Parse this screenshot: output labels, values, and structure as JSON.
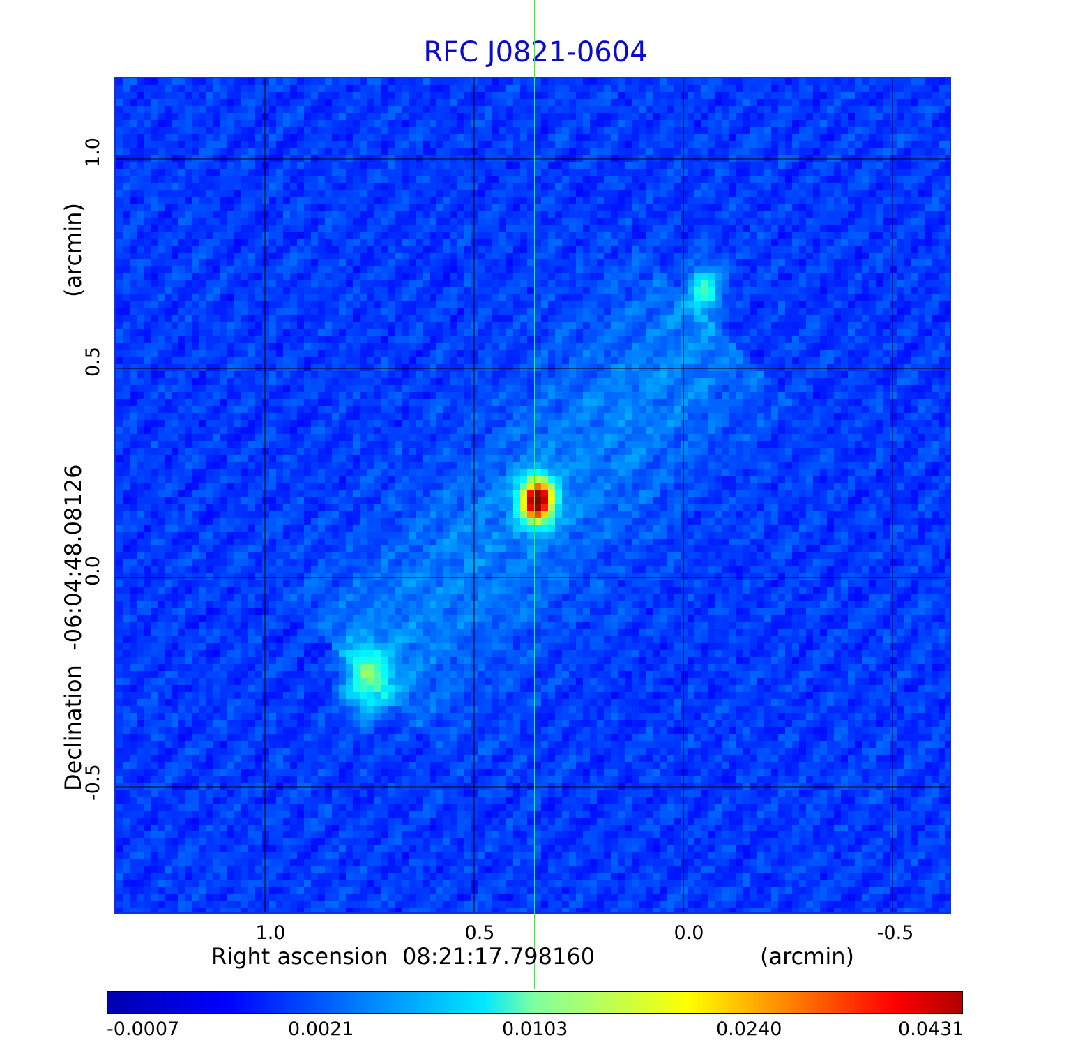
{
  "title": "RFC J0821-0604",
  "x_axis": {
    "label": "Right ascension",
    "center": "08:21:17.798160",
    "unit": "(arcmin)",
    "ticks": [
      "1.0",
      "0.5",
      "0.0",
      "-0.5"
    ]
  },
  "y_axis": {
    "label": "Declination",
    "center": "-06:04:48.08126",
    "unit": "(arcmin)",
    "ticks": [
      "1.0",
      "0.5",
      "0.0",
      "-0.5"
    ]
  },
  "colorbar": {
    "ticks": [
      "-0.0007",
      "0.0021",
      "0.0103",
      "0.0240",
      "0.0431"
    ],
    "colormap": "jet"
  },
  "colors": {
    "title": "#0a0ad0",
    "grid": "#000000",
    "crosshair": "#20ff20"
  }
}
